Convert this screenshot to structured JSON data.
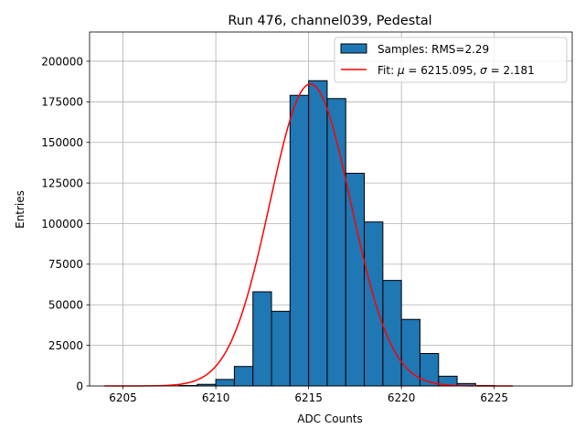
{
  "chart_data": {
    "type": "bar",
    "title": "Run 476, channel039, Pedestal",
    "xlabel": "ADC Counts",
    "ylabel": "Entries",
    "xlim": [
      6203.2,
      6229.2
    ],
    "ylim": [
      0,
      218000
    ],
    "xticks": [
      6205,
      6210,
      6215,
      6220,
      6225
    ],
    "yticks": [
      0,
      25000,
      50000,
      75000,
      100000,
      125000,
      150000,
      175000,
      200000
    ],
    "grid": true,
    "legend_position": "top-right",
    "bar_color": "#1f77b4",
    "fit_color": "#ff0000",
    "bins": [
      {
        "left": 6208,
        "right": 6209,
        "value": 300
      },
      {
        "left": 6209,
        "right": 6210,
        "value": 1000
      },
      {
        "left": 6210,
        "right": 6211,
        "value": 4000
      },
      {
        "left": 6211,
        "right": 6212,
        "value": 12000
      },
      {
        "left": 6212,
        "right": 6213,
        "value": 58000
      },
      {
        "left": 6213,
        "right": 6214,
        "value": 46000
      },
      {
        "left": 6214,
        "right": 6215,
        "value": 179000
      },
      {
        "left": 6215,
        "right": 6216,
        "value": 188000
      },
      {
        "left": 6216,
        "right": 6217,
        "value": 177000
      },
      {
        "left": 6217,
        "right": 6218,
        "value": 131000
      },
      {
        "left": 6218,
        "right": 6219,
        "value": 101000
      },
      {
        "left": 6219,
        "right": 6220,
        "value": 65000
      },
      {
        "left": 6220,
        "right": 6221,
        "value": 41000
      },
      {
        "left": 6221,
        "right": 6222,
        "value": 20000
      },
      {
        "left": 6222,
        "right": 6223,
        "value": 6000
      },
      {
        "left": 6223,
        "right": 6224,
        "value": 1500
      },
      {
        "left": 6224,
        "right": 6225,
        "value": 300
      }
    ],
    "fit": {
      "mu": 6215.095,
      "sigma": 2.181,
      "amplitude": 186000,
      "x_range": [
        6204,
        6226
      ]
    },
    "legend": {
      "samples_label": "Samples: RMS=2.29",
      "fit_prefix": "Fit: ",
      "mu_symbol": "μ",
      "mu_text": " = 6215.095, ",
      "sigma_symbol": "σ",
      "sigma_text": " = 2.181"
    }
  }
}
